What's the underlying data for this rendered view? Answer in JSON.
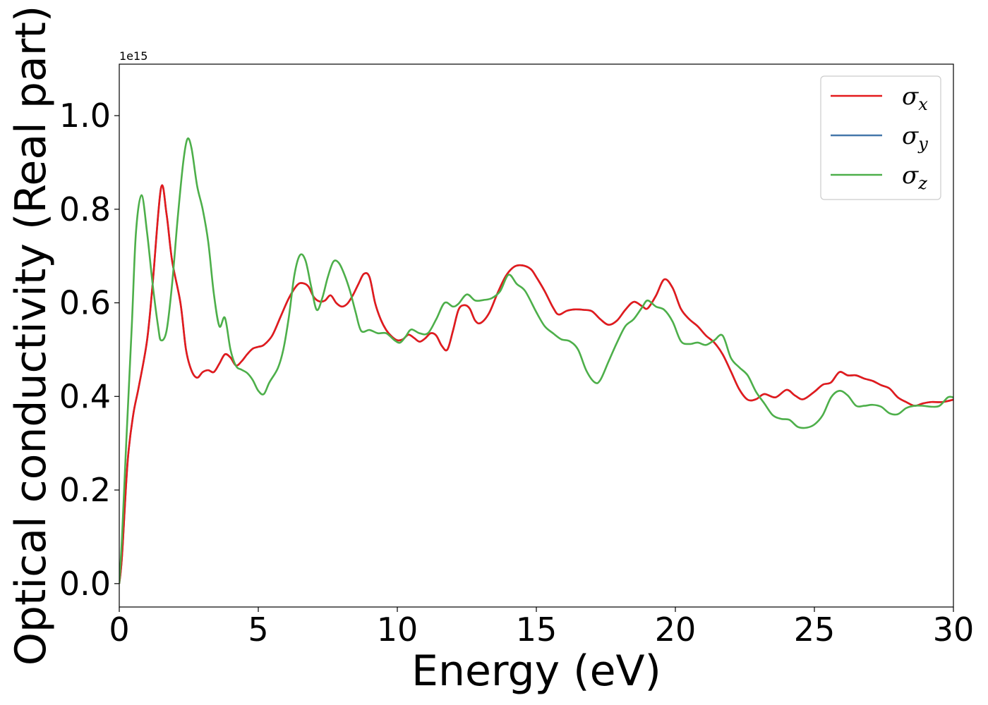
{
  "chart_data": {
    "type": "line",
    "title": "",
    "xlabel": "Energy (eV)",
    "ylabel": "Optical conductivity (Real part)",
    "y_offset_label": "1e15",
    "xlim": [
      0,
      30
    ],
    "ylim": [
      -0.05,
      1.11
    ],
    "x_ticks": [
      0,
      5,
      10,
      15,
      20,
      25,
      30
    ],
    "x_tick_labels": [
      "0",
      "5",
      "10",
      "15",
      "20",
      "25",
      "30"
    ],
    "y_ticks": [
      0.0,
      0.2,
      0.4,
      0.6,
      0.8,
      1.0
    ],
    "y_tick_labels": [
      "0.0",
      "0.2",
      "0.4",
      "0.6",
      "0.8",
      "1.0"
    ],
    "grid": false,
    "legend_position": "top-right",
    "legend": [
      {
        "symbol": "σ",
        "sub": "x",
        "color": "#e41a1c"
      },
      {
        "symbol": "σ",
        "sub": "y",
        "color": "#4477aa"
      },
      {
        "symbol": "σ",
        "sub": "z",
        "color": "#4daf4a"
      }
    ],
    "series": [
      {
        "key": "sigma_y",
        "color": "#4477aa",
        "points": [
          [
            0,
            0.0
          ],
          [
            0.1,
            0.06
          ],
          [
            0.3,
            0.26
          ],
          [
            0.5,
            0.36
          ],
          [
            0.7,
            0.42
          ],
          [
            1.0,
            0.52
          ],
          [
            1.2,
            0.64
          ],
          [
            1.5,
            0.845
          ],
          [
            1.7,
            0.79
          ],
          [
            1.9,
            0.69
          ],
          [
            2.2,
            0.6
          ],
          [
            2.4,
            0.5
          ],
          [
            2.6,
            0.455
          ],
          [
            2.8,
            0.44
          ],
          [
            3.0,
            0.452
          ],
          [
            3.2,
            0.456
          ],
          [
            3.4,
            0.452
          ],
          [
            3.6,
            0.47
          ],
          [
            3.8,
            0.49
          ],
          [
            4.0,
            0.483
          ],
          [
            4.2,
            0.466
          ],
          [
            4.4,
            0.475
          ],
          [
            4.6,
            0.49
          ],
          [
            4.8,
            0.502
          ],
          [
            5.0,
            0.506
          ],
          [
            5.2,
            0.51
          ],
          [
            5.5,
            0.53
          ],
          [
            5.8,
            0.57
          ],
          [
            6.1,
            0.61
          ],
          [
            6.4,
            0.638
          ],
          [
            6.6,
            0.642
          ],
          [
            6.8,
            0.635
          ],
          [
            7.0,
            0.612
          ],
          [
            7.2,
            0.603
          ],
          [
            7.4,
            0.605
          ],
          [
            7.6,
            0.616
          ],
          [
            7.8,
            0.6
          ],
          [
            8.0,
            0.592
          ],
          [
            8.2,
            0.598
          ],
          [
            8.4,
            0.616
          ],
          [
            8.6,
            0.64
          ],
          [
            8.8,
            0.662
          ],
          [
            9.0,
            0.655
          ],
          [
            9.2,
            0.6
          ],
          [
            9.4,
            0.565
          ],
          [
            9.6,
            0.542
          ],
          [
            9.8,
            0.528
          ],
          [
            10.0,
            0.52
          ],
          [
            10.2,
            0.522
          ],
          [
            10.4,
            0.532
          ],
          [
            10.6,
            0.525
          ],
          [
            10.8,
            0.517
          ],
          [
            11.0,
            0.524
          ],
          [
            11.2,
            0.535
          ],
          [
            11.4,
            0.53
          ],
          [
            11.6,
            0.508
          ],
          [
            11.8,
            0.5
          ],
          [
            12.0,
            0.54
          ],
          [
            12.2,
            0.585
          ],
          [
            12.4,
            0.595
          ],
          [
            12.6,
            0.588
          ],
          [
            12.8,
            0.562
          ],
          [
            13.0,
            0.557
          ],
          [
            13.3,
            0.578
          ],
          [
            13.6,
            0.62
          ],
          [
            13.9,
            0.657
          ],
          [
            14.2,
            0.677
          ],
          [
            14.5,
            0.68
          ],
          [
            14.8,
            0.672
          ],
          [
            15.0,
            0.655
          ],
          [
            15.3,
            0.625
          ],
          [
            15.6,
            0.59
          ],
          [
            15.8,
            0.575
          ],
          [
            16.1,
            0.583
          ],
          [
            16.4,
            0.586
          ],
          [
            16.7,
            0.585
          ],
          [
            17.0,
            0.582
          ],
          [
            17.3,
            0.565
          ],
          [
            17.6,
            0.553
          ],
          [
            17.9,
            0.562
          ],
          [
            18.2,
            0.585
          ],
          [
            18.5,
            0.602
          ],
          [
            18.8,
            0.593
          ],
          [
            19.0,
            0.588
          ],
          [
            19.3,
            0.615
          ],
          [
            19.6,
            0.65
          ],
          [
            19.9,
            0.632
          ],
          [
            20.2,
            0.587
          ],
          [
            20.5,
            0.565
          ],
          [
            20.8,
            0.55
          ],
          [
            21.1,
            0.53
          ],
          [
            21.4,
            0.515
          ],
          [
            21.7,
            0.49
          ],
          [
            22.0,
            0.453
          ],
          [
            22.3,
            0.415
          ],
          [
            22.6,
            0.393
          ],
          [
            22.9,
            0.394
          ],
          [
            23.2,
            0.405
          ],
          [
            23.6,
            0.398
          ],
          [
            24.0,
            0.414
          ],
          [
            24.3,
            0.402
          ],
          [
            24.6,
            0.394
          ],
          [
            25.0,
            0.41
          ],
          [
            25.3,
            0.425
          ],
          [
            25.6,
            0.43
          ],
          [
            25.9,
            0.452
          ],
          [
            26.2,
            0.445
          ],
          [
            26.5,
            0.445
          ],
          [
            26.8,
            0.438
          ],
          [
            27.1,
            0.433
          ],
          [
            27.4,
            0.424
          ],
          [
            27.7,
            0.417
          ],
          [
            28.0,
            0.398
          ],
          [
            28.3,
            0.388
          ],
          [
            28.6,
            0.38
          ],
          [
            28.9,
            0.385
          ],
          [
            29.2,
            0.388
          ],
          [
            29.6,
            0.388
          ],
          [
            30.0,
            0.393
          ]
        ]
      },
      {
        "key": "sigma_x",
        "color": "#e41a1c",
        "same_as": "sigma_y"
      },
      {
        "key": "sigma_z",
        "color": "#4daf4a",
        "points": [
          [
            0,
            0.0
          ],
          [
            0.1,
            0.1
          ],
          [
            0.25,
            0.3
          ],
          [
            0.45,
            0.55
          ],
          [
            0.6,
            0.75
          ],
          [
            0.8,
            0.83
          ],
          [
            1.0,
            0.75
          ],
          [
            1.2,
            0.64
          ],
          [
            1.4,
            0.548
          ],
          [
            1.5,
            0.52
          ],
          [
            1.7,
            0.54
          ],
          [
            1.9,
            0.64
          ],
          [
            2.1,
            0.78
          ],
          [
            2.3,
            0.9
          ],
          [
            2.45,
            0.95
          ],
          [
            2.6,
            0.93
          ],
          [
            2.8,
            0.85
          ],
          [
            3.0,
            0.8
          ],
          [
            3.2,
            0.73
          ],
          [
            3.4,
            0.62
          ],
          [
            3.6,
            0.55
          ],
          [
            3.8,
            0.568
          ],
          [
            4.0,
            0.5
          ],
          [
            4.2,
            0.465
          ],
          [
            4.4,
            0.457
          ],
          [
            4.6,
            0.45
          ],
          [
            4.8,
            0.435
          ],
          [
            5.0,
            0.412
          ],
          [
            5.2,
            0.405
          ],
          [
            5.4,
            0.43
          ],
          [
            5.7,
            0.46
          ],
          [
            5.9,
            0.5
          ],
          [
            6.1,
            0.57
          ],
          [
            6.3,
            0.66
          ],
          [
            6.5,
            0.702
          ],
          [
            6.7,
            0.69
          ],
          [
            6.9,
            0.635
          ],
          [
            7.1,
            0.585
          ],
          [
            7.3,
            0.61
          ],
          [
            7.5,
            0.655
          ],
          [
            7.7,
            0.688
          ],
          [
            7.9,
            0.685
          ],
          [
            8.1,
            0.66
          ],
          [
            8.3,
            0.625
          ],
          [
            8.5,
            0.58
          ],
          [
            8.7,
            0.54
          ],
          [
            9.0,
            0.542
          ],
          [
            9.3,
            0.535
          ],
          [
            9.6,
            0.535
          ],
          [
            9.9,
            0.52
          ],
          [
            10.1,
            0.515
          ],
          [
            10.3,
            0.528
          ],
          [
            10.5,
            0.543
          ],
          [
            10.8,
            0.535
          ],
          [
            11.1,
            0.535
          ],
          [
            11.4,
            0.565
          ],
          [
            11.7,
            0.6
          ],
          [
            12.0,
            0.592
          ],
          [
            12.2,
            0.598
          ],
          [
            12.5,
            0.618
          ],
          [
            12.8,
            0.605
          ],
          [
            13.1,
            0.606
          ],
          [
            13.4,
            0.61
          ],
          [
            13.7,
            0.625
          ],
          [
            14.0,
            0.66
          ],
          [
            14.3,
            0.64
          ],
          [
            14.6,
            0.625
          ],
          [
            15.0,
            0.58
          ],
          [
            15.3,
            0.55
          ],
          [
            15.6,
            0.535
          ],
          [
            15.9,
            0.522
          ],
          [
            16.2,
            0.518
          ],
          [
            16.5,
            0.5
          ],
          [
            16.8,
            0.455
          ],
          [
            17.1,
            0.43
          ],
          [
            17.3,
            0.435
          ],
          [
            17.6,
            0.475
          ],
          [
            17.9,
            0.515
          ],
          [
            18.2,
            0.55
          ],
          [
            18.5,
            0.565
          ],
          [
            18.8,
            0.59
          ],
          [
            19.0,
            0.605
          ],
          [
            19.3,
            0.592
          ],
          [
            19.6,
            0.585
          ],
          [
            19.9,
            0.56
          ],
          [
            20.2,
            0.518
          ],
          [
            20.5,
            0.512
          ],
          [
            20.8,
            0.515
          ],
          [
            21.1,
            0.51
          ],
          [
            21.4,
            0.52
          ],
          [
            21.7,
            0.53
          ],
          [
            22.0,
            0.482
          ],
          [
            22.3,
            0.462
          ],
          [
            22.6,
            0.445
          ],
          [
            22.9,
            0.41
          ],
          [
            23.2,
            0.385
          ],
          [
            23.5,
            0.36
          ],
          [
            23.8,
            0.352
          ],
          [
            24.1,
            0.35
          ],
          [
            24.4,
            0.335
          ],
          [
            24.7,
            0.333
          ],
          [
            25.0,
            0.34
          ],
          [
            25.3,
            0.36
          ],
          [
            25.6,
            0.398
          ],
          [
            25.9,
            0.412
          ],
          [
            26.2,
            0.402
          ],
          [
            26.5,
            0.38
          ],
          [
            26.8,
            0.38
          ],
          [
            27.1,
            0.382
          ],
          [
            27.4,
            0.378
          ],
          [
            27.7,
            0.364
          ],
          [
            28.0,
            0.362
          ],
          [
            28.3,
            0.375
          ],
          [
            28.6,
            0.38
          ],
          [
            28.9,
            0.38
          ],
          [
            29.2,
            0.378
          ],
          [
            29.5,
            0.38
          ],
          [
            29.8,
            0.398
          ],
          [
            30.0,
            0.398
          ]
        ]
      }
    ]
  }
}
